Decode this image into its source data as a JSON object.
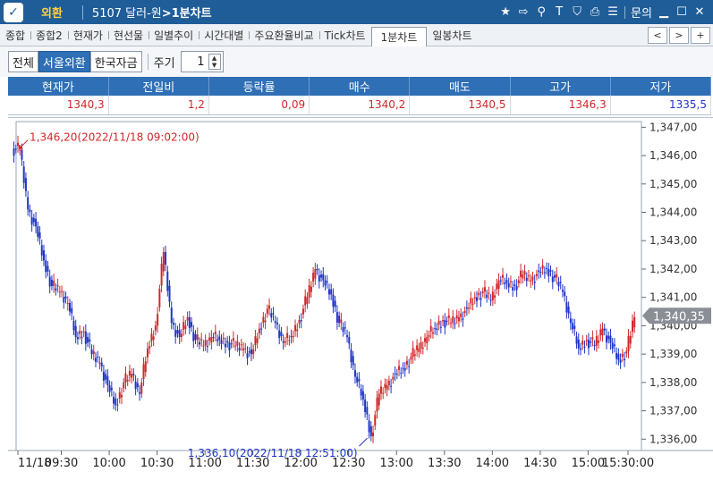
{
  "titlebar": {
    "app_name": "외환",
    "title_code": "5107 달러-원",
    "title_suffix": ">1분차트",
    "inquiry_label": "문의",
    "icons": [
      "star-icon",
      "export-icon",
      "link-icon",
      "text-icon",
      "shield-icon",
      "print-icon",
      "list-icon",
      "minimize-icon",
      "maximize-icon",
      "close-icon"
    ]
  },
  "tabs": [
    "종합",
    "종합2",
    "현재가",
    "현선물",
    "일별추이",
    "시간대별",
    "주요환율비교",
    "Tick차트",
    "1분차트",
    "일봉차트"
  ],
  "active_tab": "1분차트",
  "filters": {
    "buttons": [
      "전체",
      "서울외환",
      "한국자금"
    ],
    "active": "서울외환",
    "period_label": "주기",
    "period_value": "1"
  },
  "quote": {
    "headers": [
      "현재가",
      "전일비",
      "등락률",
      "매수",
      "매도",
      "고가",
      "저가"
    ],
    "values": [
      "1340,3",
      "1,2",
      "0,09",
      "1340,2",
      "1340,5",
      "1346,3",
      "1335,5"
    ],
    "colors": [
      "#d0282a",
      "#d0282a",
      "#d0282a",
      "#d0282a",
      "#d0282a",
      "#d0282a",
      "#2035c8"
    ]
  },
  "chart_data": {
    "type": "candlestick",
    "title": "",
    "x_ticks": [
      "11/18",
      "09:30",
      "10:00",
      "10:30",
      "11:00",
      "11:30",
      "12:00",
      "12:30",
      "13:00",
      "13:30",
      "14:00",
      "14:30",
      "15:00",
      "15:30:00"
    ],
    "y_ticks": [
      "1,347,00",
      "1,346,00",
      "1,345,00",
      "1,344,00",
      "1,343,00",
      "1,342,00",
      "1,341,00",
      "1,340,00",
      "1,339,00",
      "1,338,00",
      "1,337,00",
      "1,336,00"
    ],
    "ylim": [
      1335.6,
      1347.2
    ],
    "current_price": 1340.35,
    "current_price_label": "1,340,35",
    "high_annotation": "1,346,20(2022/11/18 09:02:00)",
    "high_value": 1346.2,
    "low_annotation": "1,336,10(2022/11/18 12:51:00)",
    "low_value": 1336.1,
    "up_color": "#d0282a",
    "down_color": "#2035c8",
    "series": [
      {
        "time": "09:00",
        "close": 1346.2
      },
      {
        "time": "09:05",
        "close": 1344.1
      },
      {
        "time": "09:10",
        "close": 1343.5
      },
      {
        "time": "09:15",
        "close": 1342.3
      },
      {
        "time": "09:20",
        "close": 1341.4
      },
      {
        "time": "09:25",
        "close": 1341.2
      },
      {
        "time": "09:30",
        "close": 1340.8
      },
      {
        "time": "09:35",
        "close": 1339.6
      },
      {
        "time": "09:40",
        "close": 1339.8
      },
      {
        "time": "09:45",
        "close": 1339.0
      },
      {
        "time": "09:50",
        "close": 1338.7
      },
      {
        "time": "09:55",
        "close": 1337.9
      },
      {
        "time": "10:00",
        "close": 1337.2
      },
      {
        "time": "10:05",
        "close": 1338.0
      },
      {
        "time": "10:10",
        "close": 1338.3
      },
      {
        "time": "10:15",
        "close": 1337.6
      },
      {
        "time": "10:20",
        "close": 1339.2
      },
      {
        "time": "10:25",
        "close": 1340.0
      },
      {
        "time": "10:30",
        "close": 1342.6
      },
      {
        "time": "10:35",
        "close": 1340.1
      },
      {
        "time": "10:40",
        "close": 1339.6
      },
      {
        "time": "10:45",
        "close": 1340.3
      },
      {
        "time": "10:50",
        "close": 1339.5
      },
      {
        "time": "10:55",
        "close": 1339.3
      },
      {
        "time": "11:00",
        "close": 1339.6
      },
      {
        "time": "11:05",
        "close": 1339.5
      },
      {
        "time": "11:10",
        "close": 1339.4
      },
      {
        "time": "11:15",
        "close": 1339.3
      },
      {
        "time": "11:20",
        "close": 1339.2
      },
      {
        "time": "11:25",
        "close": 1339.0
      },
      {
        "time": "11:30",
        "close": 1339.9
      },
      {
        "time": "11:35",
        "close": 1340.6
      },
      {
        "time": "11:40",
        "close": 1340.1
      },
      {
        "time": "11:45",
        "close": 1339.4
      },
      {
        "time": "11:50",
        "close": 1339.6
      },
      {
        "time": "11:55",
        "close": 1340.2
      },
      {
        "time": "12:00",
        "close": 1341.0
      },
      {
        "time": "12:05",
        "close": 1342.0
      },
      {
        "time": "12:10",
        "close": 1341.6
      },
      {
        "time": "12:15",
        "close": 1341.1
      },
      {
        "time": "12:20",
        "close": 1340.1
      },
      {
        "time": "12:25",
        "close": 1339.6
      },
      {
        "time": "12:30",
        "close": 1338.2
      },
      {
        "time": "12:35",
        "close": 1337.4
      },
      {
        "time": "12:40",
        "close": 1336.1
      },
      {
        "time": "12:45",
        "close": 1337.6
      },
      {
        "time": "12:50",
        "close": 1337.9
      },
      {
        "time": "12:55",
        "close": 1338.3
      },
      {
        "time": "13:00",
        "close": 1338.5
      },
      {
        "time": "13:05",
        "close": 1338.9
      },
      {
        "time": "13:10",
        "close": 1339.2
      },
      {
        "time": "13:15",
        "close": 1339.6
      },
      {
        "time": "13:20",
        "close": 1339.9
      },
      {
        "time": "13:25",
        "close": 1340.2
      },
      {
        "time": "13:30",
        "close": 1340.1
      },
      {
        "time": "13:35",
        "close": 1340.3
      },
      {
        "time": "13:40",
        "close": 1340.6
      },
      {
        "time": "13:45",
        "close": 1341.0
      },
      {
        "time": "13:50",
        "close": 1341.2
      },
      {
        "time": "13:55",
        "close": 1340.9
      },
      {
        "time": "14:00",
        "close": 1341.6
      },
      {
        "time": "14:05",
        "close": 1341.5
      },
      {
        "time": "14:10",
        "close": 1341.4
      },
      {
        "time": "14:15",
        "close": 1341.8
      },
      {
        "time": "14:20",
        "close": 1341.6
      },
      {
        "time": "14:25",
        "close": 1341.9
      },
      {
        "time": "14:30",
        "close": 1342.0
      },
      {
        "time": "14:35",
        "close": 1341.7
      },
      {
        "time": "14:40",
        "close": 1341.2
      },
      {
        "time": "14:45",
        "close": 1340.1
      },
      {
        "time": "14:50",
        "close": 1339.2
      },
      {
        "time": "14:55",
        "close": 1339.5
      },
      {
        "time": "15:00",
        "close": 1339.3
      },
      {
        "time": "15:05",
        "close": 1339.9
      },
      {
        "time": "15:10",
        "close": 1339.4
      },
      {
        "time": "15:15",
        "close": 1338.8
      },
      {
        "time": "15:20",
        "close": 1339.1
      },
      {
        "time": "15:25",
        "close": 1340.3
      }
    ]
  }
}
